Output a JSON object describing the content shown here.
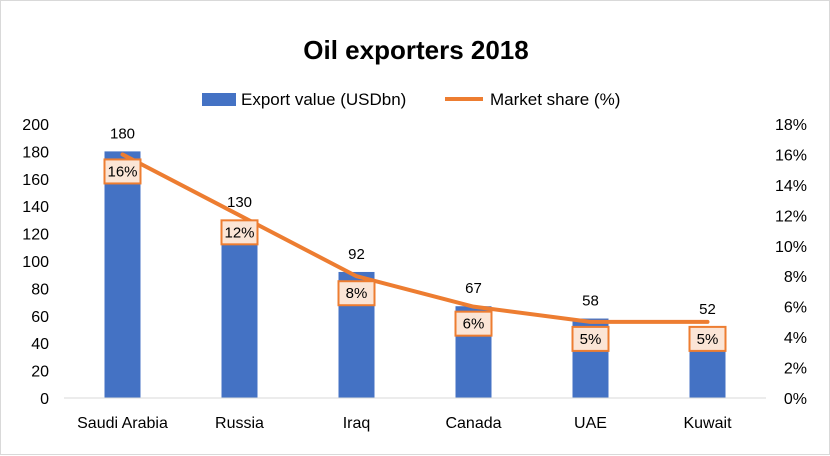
{
  "chart_data": {
    "type": "bar",
    "title": "Oil exporters 2018",
    "categories": [
      "Saudi Arabia",
      "Russia",
      "Iraq",
      "Canada",
      "UAE",
      "Kuwait"
    ],
    "series": [
      {
        "name": "Export value (USDbn)",
        "type": "bar",
        "axis": "left",
        "color": "#4472C4",
        "values": [
          180,
          130,
          92,
          67,
          58,
          52
        ],
        "labels": [
          "180",
          "130",
          "92",
          "67",
          "58",
          "52"
        ]
      },
      {
        "name": "Market share (%)",
        "type": "line",
        "axis": "right",
        "color": "#ED7D31",
        "values": [
          16,
          12,
          8,
          6,
          5,
          5
        ],
        "labels": [
          "16%",
          "12%",
          "8%",
          "6%",
          "5%",
          "5%"
        ]
      }
    ],
    "y_left": {
      "min": 0,
      "max": 200,
      "step": 20,
      "ticks": [
        "0",
        "20",
        "40",
        "60",
        "80",
        "100",
        "120",
        "140",
        "160",
        "180",
        "200"
      ]
    },
    "y_right": {
      "min": 0,
      "max": 18,
      "step": 2,
      "ticks": [
        "0%",
        "2%",
        "4%",
        "6%",
        "8%",
        "10%",
        "12%",
        "14%",
        "16%",
        "18%"
      ]
    },
    "legend_position": "top",
    "grid": false
  }
}
